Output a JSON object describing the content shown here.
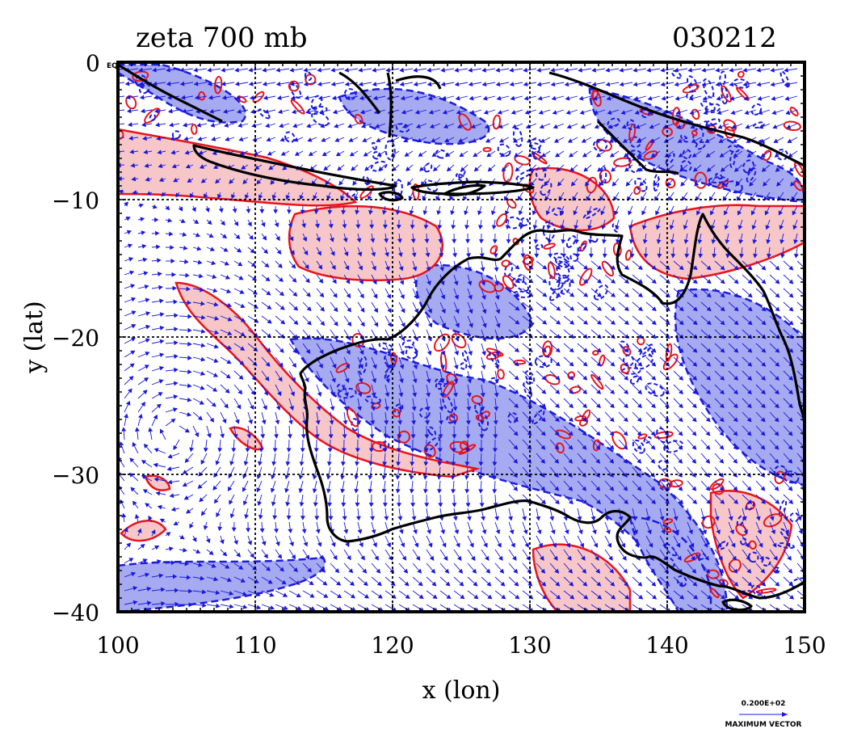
{
  "header": {
    "title": "zeta 700 mb",
    "date": "030212",
    "corner_label": "EQ"
  },
  "axes": {
    "xlabel": "x (lon)",
    "ylabel": "y (lat)",
    "x_ticks": [
      "100",
      "110",
      "120",
      "130",
      "140",
      "150"
    ],
    "y_ticks": [
      "0",
      "−10",
      "−20",
      "−30",
      "−40"
    ]
  },
  "legend": {
    "vector_value": "0.200E+02",
    "vector_label": "MAXIMUM VECTOR"
  },
  "chart_data": {
    "type": "contour-vector map",
    "x_range": [
      100,
      150
    ],
    "y_range": [
      -40,
      0
    ],
    "grid": true,
    "colors": {
      "positive_contour": "#e8141c",
      "positive_fill": "#f6c6c8",
      "negative_contour": "#1c1cdc",
      "negative_fill": "#a6aaf0",
      "coastline": "#000000",
      "vectors": "#1818e0"
    }
  }
}
